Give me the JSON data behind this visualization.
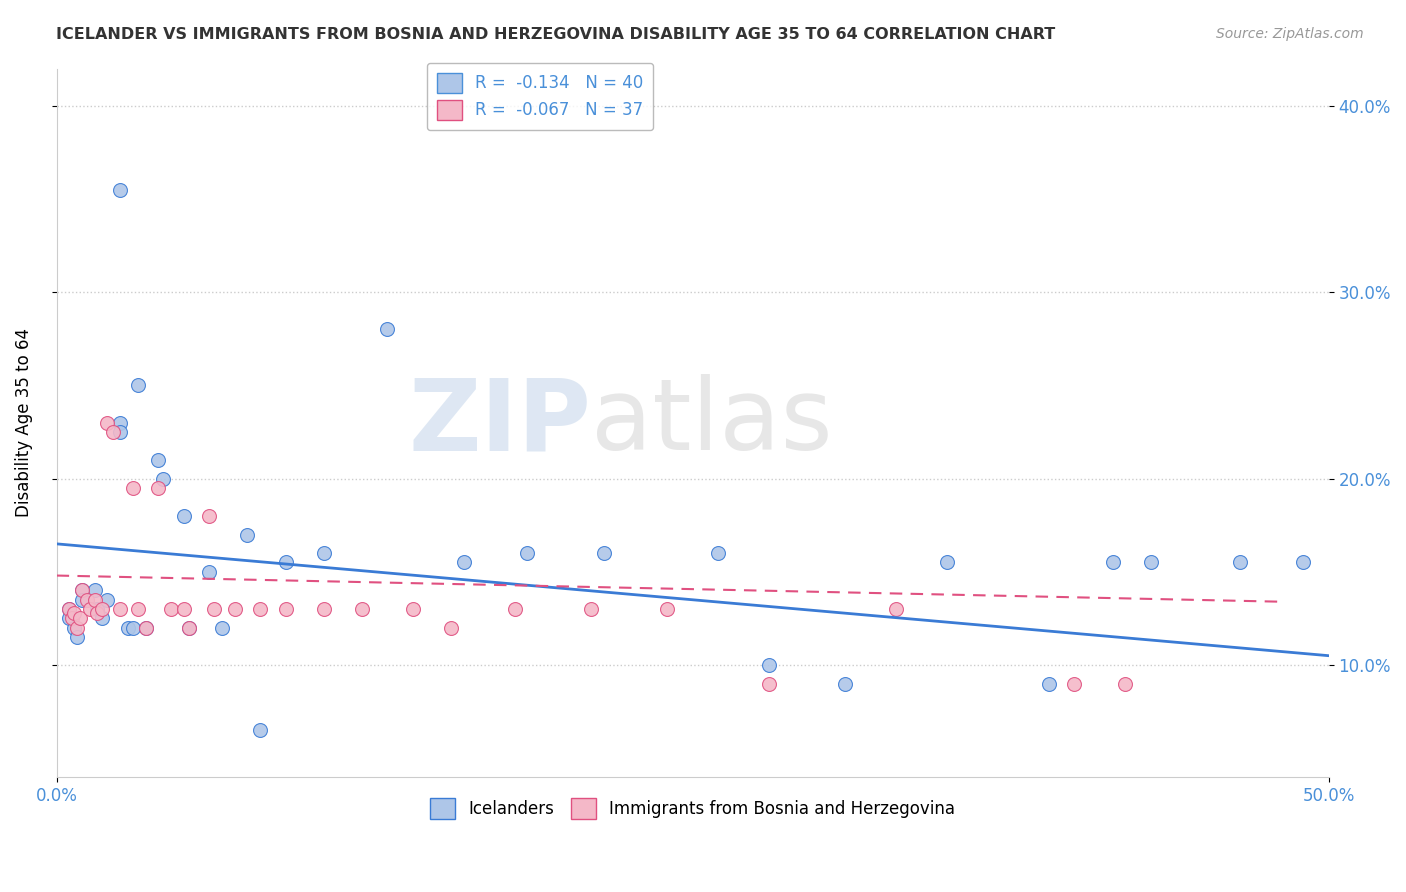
{
  "title": "ICELANDER VS IMMIGRANTS FROM BOSNIA AND HERZEGOVINA DISABILITY AGE 35 TO 64 CORRELATION CHART",
  "source": "Source: ZipAtlas.com",
  "ylabel": "Disability Age 35 to 64",
  "xlabel": "",
  "xlim": [
    0.0,
    0.5
  ],
  "ylim": [
    0.04,
    0.42
  ],
  "xtick_left": 0.0,
  "xtick_right": 0.5,
  "xtick_left_label": "0.0%",
  "xtick_right_label": "50.0%",
  "yticks": [
    0.1,
    0.2,
    0.3,
    0.4
  ],
  "yticklabels": [
    "10.0%",
    "20.0%",
    "30.0%",
    "40.0%"
  ],
  "legend_entries": [
    {
      "label": "R =  -0.134   N = 40",
      "color": "#aec6e8",
      "line_color": "#4a90d9"
    },
    {
      "label": "R =  -0.067   N = 37",
      "color": "#f4b8c8",
      "line_color": "#e05080"
    }
  ],
  "icelanders_x": [
    0.005,
    0.005,
    0.007,
    0.008,
    0.01,
    0.01,
    0.015,
    0.016,
    0.018,
    0.02,
    0.025,
    0.025,
    0.028,
    0.03,
    0.032,
    0.035,
    0.04,
    0.042,
    0.05,
    0.052,
    0.06,
    0.065,
    0.075,
    0.09,
    0.105,
    0.13,
    0.16,
    0.185,
    0.215,
    0.26,
    0.28,
    0.31,
    0.35,
    0.39,
    0.415,
    0.43,
    0.465,
    0.49,
    0.025,
    0.08
  ],
  "icelanders_y": [
    0.13,
    0.125,
    0.12,
    0.115,
    0.14,
    0.135,
    0.14,
    0.13,
    0.125,
    0.135,
    0.23,
    0.225,
    0.12,
    0.12,
    0.25,
    0.12,
    0.21,
    0.2,
    0.18,
    0.12,
    0.15,
    0.12,
    0.17,
    0.155,
    0.16,
    0.28,
    0.155,
    0.16,
    0.16,
    0.16,
    0.1,
    0.09,
    0.155,
    0.09,
    0.155,
    0.155,
    0.155,
    0.155,
    0.355,
    0.065
  ],
  "bosnian_x": [
    0.005,
    0.006,
    0.007,
    0.008,
    0.009,
    0.01,
    0.012,
    0.013,
    0.015,
    0.016,
    0.018,
    0.02,
    0.022,
    0.025,
    0.03,
    0.032,
    0.035,
    0.04,
    0.045,
    0.05,
    0.052,
    0.06,
    0.062,
    0.07,
    0.08,
    0.09,
    0.105,
    0.12,
    0.14,
    0.155,
    0.18,
    0.21,
    0.24,
    0.28,
    0.33,
    0.4,
    0.42
  ],
  "bosnian_y": [
    0.13,
    0.125,
    0.128,
    0.12,
    0.125,
    0.14,
    0.135,
    0.13,
    0.135,
    0.128,
    0.13,
    0.23,
    0.225,
    0.13,
    0.195,
    0.13,
    0.12,
    0.195,
    0.13,
    0.13,
    0.12,
    0.18,
    0.13,
    0.13,
    0.13,
    0.13,
    0.13,
    0.13,
    0.13,
    0.12,
    0.13,
    0.13,
    0.13,
    0.09,
    0.13,
    0.09,
    0.09
  ],
  "blue_line_x": [
    0.0,
    0.5
  ],
  "blue_line_y": [
    0.165,
    0.105
  ],
  "pink_line_x": [
    0.0,
    0.48
  ],
  "pink_line_y": [
    0.148,
    0.134
  ],
  "watermark_zip": "ZIP",
  "watermark_atlas": "atlas",
  "background_color": "#ffffff",
  "grid_color": "#cccccc",
  "scatter_blue": "#aec6e8",
  "scatter_pink": "#f4b8c8",
  "line_blue": "#3a7bd5",
  "line_pink": "#e05080",
  "title_color": "#333333",
  "source_color": "#999999",
  "axis_color": "#4a90d9",
  "legend_text_color": "#4a90d9",
  "marker_size": 100
}
